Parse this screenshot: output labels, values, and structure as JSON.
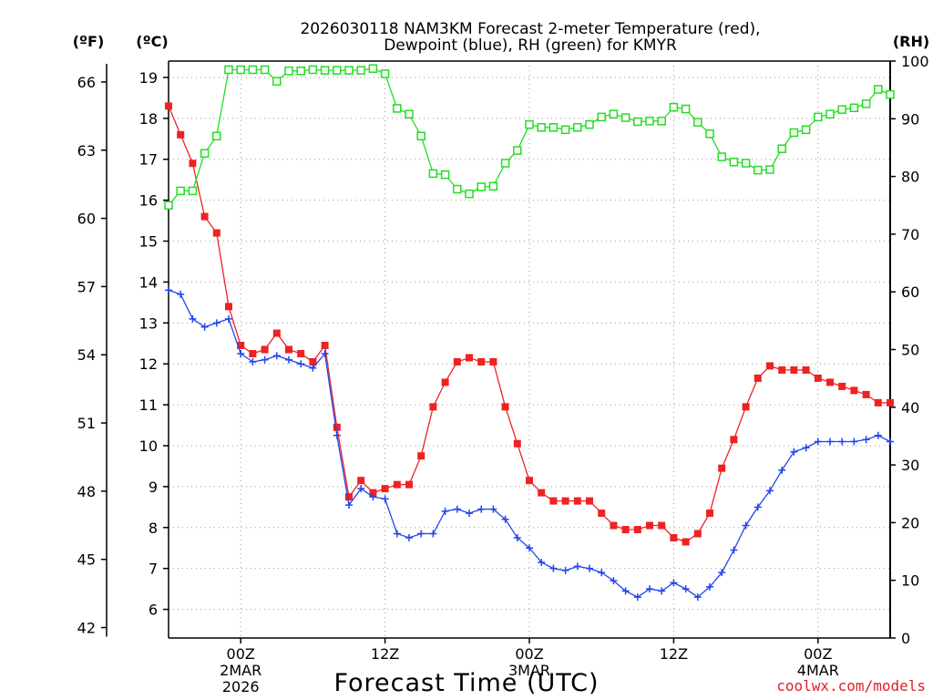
{
  "chart_data": {
    "type": "line",
    "title_line1": "2026030118 NAM3KM Forecast 2-meter Temperature (red),",
    "title_line2": "Dewpoint (blue), RH (green) for KMYR",
    "xlabel": "Forecast Time (UTC)",
    "credit": "coolwx.com/models",
    "unit_labels": {
      "fahrenheit": "(ºF)",
      "celsius": "(ºC)",
      "rh": "(RH)"
    },
    "x_hours_from_start": [
      0,
      1,
      2,
      3,
      4,
      5,
      6,
      7,
      8,
      9,
      10,
      11,
      12,
      13,
      14,
      15,
      16,
      17,
      18,
      19,
      20,
      21,
      22,
      23,
      24,
      25,
      26,
      27,
      28,
      29,
      30,
      31,
      32,
      33,
      34,
      35,
      36,
      37,
      38,
      39,
      40,
      41,
      42,
      43,
      44,
      45,
      46,
      47,
      48,
      49,
      50,
      51,
      52,
      53,
      54,
      55,
      56,
      57,
      58,
      59,
      60
    ],
    "x_ticks": [
      {
        "hour": 6,
        "label": "00Z",
        "sub1": "2MAR",
        "sub2": "2026"
      },
      {
        "hour": 18,
        "label": "12Z",
        "sub1": "",
        "sub2": ""
      },
      {
        "hour": 30,
        "label": "00Z",
        "sub1": "3MAR",
        "sub2": ""
      },
      {
        "hour": 42,
        "label": "12Z",
        "sub1": "",
        "sub2": ""
      },
      {
        "hour": 54,
        "label": "00Z",
        "sub1": "4MAR",
        "sub2": ""
      }
    ],
    "y_left_celsius": {
      "range": [
        5.3,
        19.4
      ],
      "ticks": [
        6,
        7,
        8,
        9,
        10,
        11,
        12,
        13,
        14,
        15,
        16,
        17,
        18,
        19
      ]
    },
    "y_far_left_fahrenheit": {
      "ticks": [
        42,
        45,
        48,
        51,
        54,
        57,
        60,
        63,
        66
      ]
    },
    "y_right_rh": {
      "range": [
        0,
        100
      ],
      "ticks": [
        0,
        10,
        20,
        30,
        40,
        50,
        60,
        70,
        80,
        90,
        100
      ]
    },
    "series": [
      {
        "name": "2-meter Temperature",
        "color": "#ee2222",
        "marker": "filled-square",
        "axis": "celsius",
        "values": [
          18.3,
          17.6,
          16.9,
          15.6,
          15.2,
          13.4,
          12.45,
          12.25,
          12.35,
          12.75,
          12.35,
          12.25,
          12.05,
          12.45,
          10.45,
          8.75,
          9.15,
          8.85,
          8.95,
          9.05,
          9.05,
          9.75,
          10.95,
          11.55,
          12.05,
          12.15,
          12.05,
          12.05,
          10.95,
          10.05,
          9.15,
          8.85,
          8.65,
          8.65,
          8.65,
          8.65,
          8.35,
          8.05,
          7.95,
          7.95,
          8.05,
          8.05,
          7.75,
          7.65,
          7.85,
          8.35,
          9.45,
          10.15,
          10.95,
          11.65,
          11.95,
          11.85,
          11.85,
          11.85,
          11.65,
          11.55,
          11.45,
          11.35,
          11.25,
          11.05,
          11.05
        ]
      },
      {
        "name": "Dewpoint",
        "color": "#2244ee",
        "marker": "plus",
        "axis": "celsius",
        "values": [
          13.8,
          13.7,
          13.1,
          12.9,
          13.0,
          13.1,
          12.25,
          12.05,
          12.1,
          12.2,
          12.1,
          12.0,
          11.9,
          12.25,
          10.25,
          8.55,
          8.95,
          8.75,
          8.7,
          7.85,
          7.75,
          7.85,
          7.85,
          8.4,
          8.45,
          8.35,
          8.45,
          8.45,
          8.2,
          7.75,
          7.5,
          7.15,
          7.0,
          6.95,
          7.05,
          7.0,
          6.9,
          6.7,
          6.45,
          6.3,
          6.5,
          6.45,
          6.65,
          6.5,
          6.3,
          6.55,
          6.9,
          7.45,
          8.05,
          8.5,
          8.9,
          9.4,
          9.85,
          9.95,
          10.1,
          10.1,
          10.1,
          10.1,
          10.15,
          10.25,
          10.1
        ]
      },
      {
        "name": "RH",
        "color": "#22dd22",
        "marker": "open-square",
        "axis": "rh",
        "values": [
          75,
          77.5,
          77.5,
          84,
          87,
          98.5,
          98.5,
          98.5,
          98.5,
          96.5,
          98.3,
          98.3,
          98.5,
          98.4,
          98.4,
          98.4,
          98.4,
          98.7,
          97.8,
          91.8,
          90.8,
          87,
          80.5,
          80.3,
          77.8,
          77,
          78.2,
          78.3,
          82.3,
          84.5,
          89,
          88.5,
          88.5,
          88.1,
          88.5,
          89,
          90.3,
          90.8,
          90.2,
          89.5,
          89.6,
          89.6,
          92,
          91.7,
          89.4,
          87.4,
          83.4,
          82.5,
          82.3,
          81.1,
          81.2,
          84.8,
          87.6,
          88.1,
          90.3,
          90.8,
          91.6,
          91.9,
          92.6,
          95.1,
          94.2
        ]
      }
    ]
  }
}
